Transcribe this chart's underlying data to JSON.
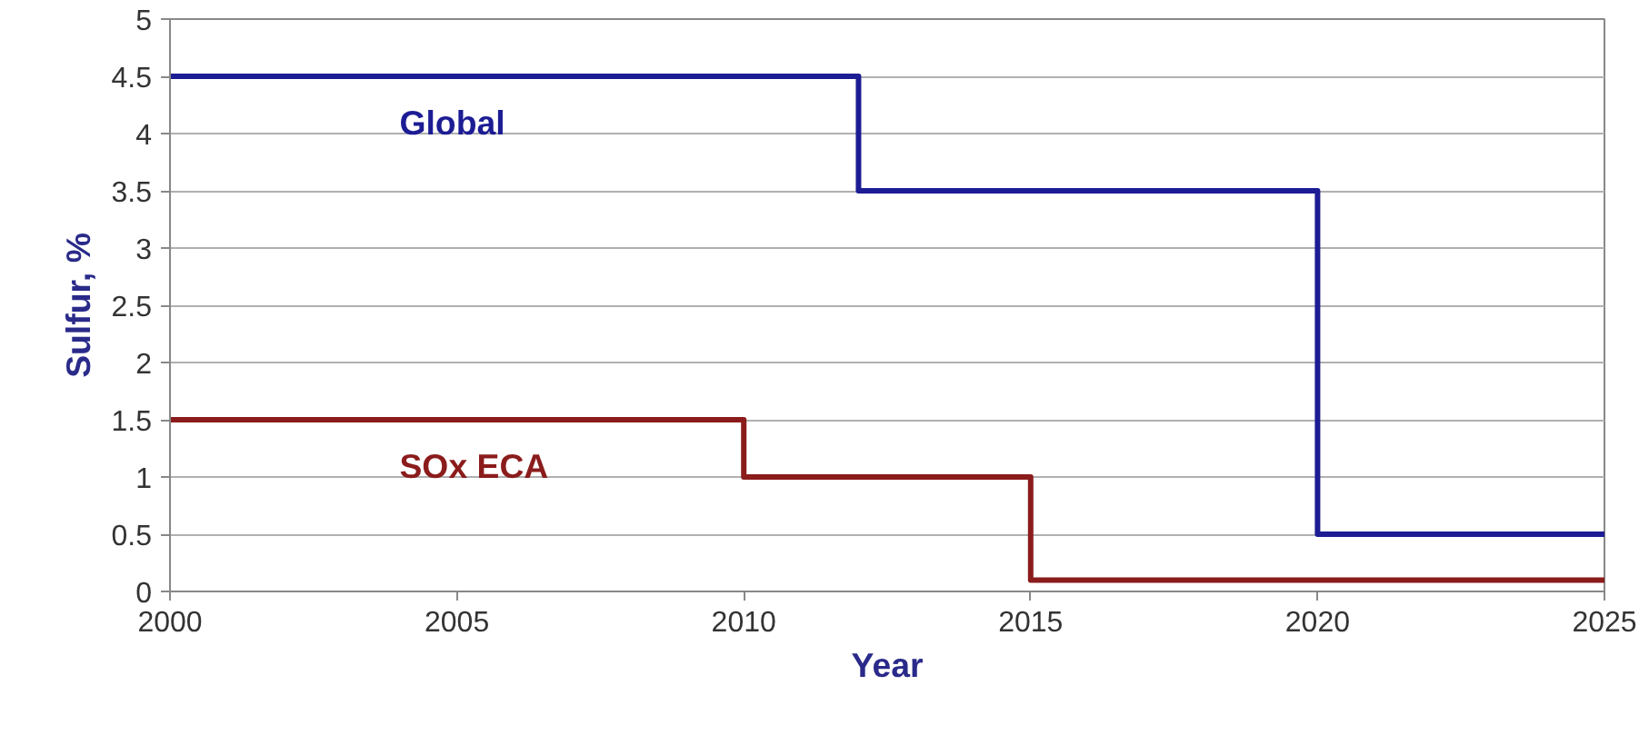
{
  "chart_data": {
    "type": "step",
    "xlabel": "Year",
    "ylabel": "Sulfur, %",
    "xlim": [
      2000,
      2025
    ],
    "xticks": [
      2000,
      2005,
      2010,
      2015,
      2020,
      2025
    ],
    "ylim": [
      0,
      5
    ],
    "yticks": [
      0,
      0.5,
      1,
      1.5,
      2,
      2.5,
      3,
      3.5,
      4,
      4.5,
      5
    ],
    "grid": "y",
    "series": [
      {
        "name": "Global",
        "color": "#1c1c94",
        "x": [
          2000,
          2012,
          2020,
          2025
        ],
        "values": [
          4.5,
          3.5,
          0.5,
          0.5
        ]
      },
      {
        "name": "SOx ECA",
        "color": "#8b1c1c",
        "x": [
          2000,
          2010,
          2015,
          2025
        ],
        "values": [
          1.5,
          1,
          0.1,
          0.1
        ]
      }
    ]
  }
}
